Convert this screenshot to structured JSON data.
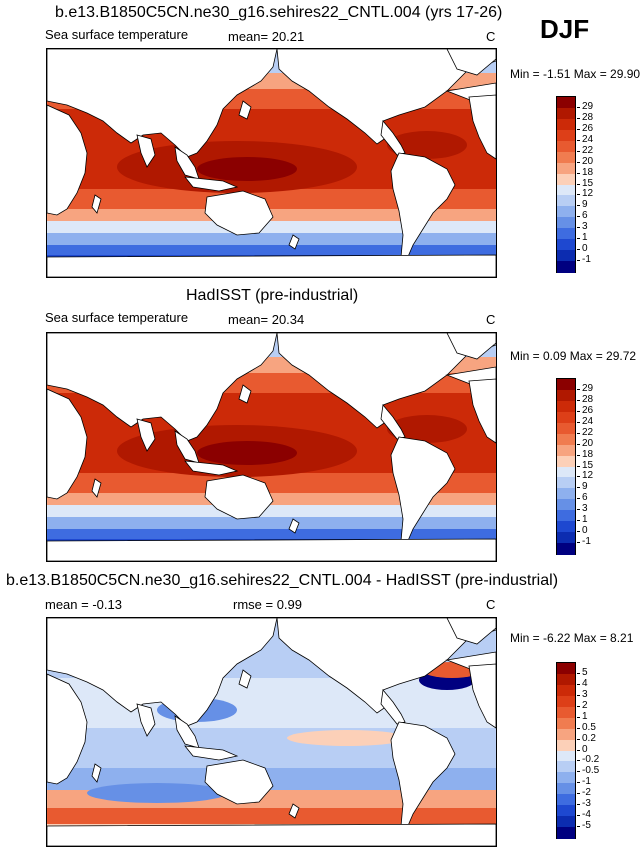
{
  "season": "DJF",
  "panels": [
    {
      "title": "b.e13.B1850C5CN.ne30_g16.sehires22_CNTL.004 (yrs 17-26)",
      "left_label": "Sea surface temperature",
      "mid_label": "mean=  20.21",
      "units": "C",
      "minmax": "Min =  -1.51 Max =  29.90",
      "colorbar": {
        "labels": [
          "29",
          "28",
          "26",
          "24",
          "22",
          "20",
          "18",
          "15",
          "12",
          "9",
          "6",
          "3",
          "1",
          "0",
          "-1"
        ],
        "colors": [
          "#8b0000",
          "#b01800",
          "#cc2a08",
          "#dd3f18",
          "#e85a30",
          "#f07c50",
          "#f7a480",
          "#fcd0b8",
          "#dde8f8",
          "#b8cef4",
          "#8eb0ee",
          "#6690e6",
          "#3e6ce0",
          "#1e48d0",
          "#0c2cb0",
          "#000080"
        ]
      }
    },
    {
      "title": "HadISST (pre-industrial)",
      "left_label": "Sea surface temperature",
      "mid_label": "mean=  20.34",
      "units": "C",
      "minmax": "Min =  0.09 Max =  29.72",
      "colorbar": {
        "labels": [
          "29",
          "28",
          "26",
          "24",
          "22",
          "20",
          "18",
          "15",
          "12",
          "9",
          "6",
          "3",
          "1",
          "0",
          "-1"
        ],
        "colors": [
          "#8b0000",
          "#b01800",
          "#cc2a08",
          "#dd3f18",
          "#e85a30",
          "#f07c50",
          "#f7a480",
          "#fcd0b8",
          "#dde8f8",
          "#b8cef4",
          "#8eb0ee",
          "#6690e6",
          "#3e6ce0",
          "#1e48d0",
          "#0c2cb0",
          "#000080"
        ]
      }
    },
    {
      "title": "b.e13.B1850C5CN.ne30_g16.sehires22_CNTL.004 - HadISST (pre-industrial)",
      "left_label": "mean =  -0.13",
      "mid_label": "rmse =  0.99",
      "units": "C",
      "minmax": "Min =  -6.22 Max =  8.21",
      "colorbar": {
        "labels": [
          "5",
          "4",
          "3",
          "2",
          "1",
          "0.5",
          "0.2",
          "0",
          "-0.2",
          "-0.5",
          "-1",
          "-2",
          "-3",
          "-4",
          "-5"
        ],
        "colors": [
          "#8b0000",
          "#b01800",
          "#cc2a08",
          "#dd3f18",
          "#e85a30",
          "#f07c50",
          "#f7a480",
          "#fcd0b8",
          "#dde8f8",
          "#b8cef4",
          "#8eb0ee",
          "#6690e6",
          "#3e6ce0",
          "#1e48d0",
          "#0c2cb0",
          "#000080"
        ]
      }
    }
  ]
}
